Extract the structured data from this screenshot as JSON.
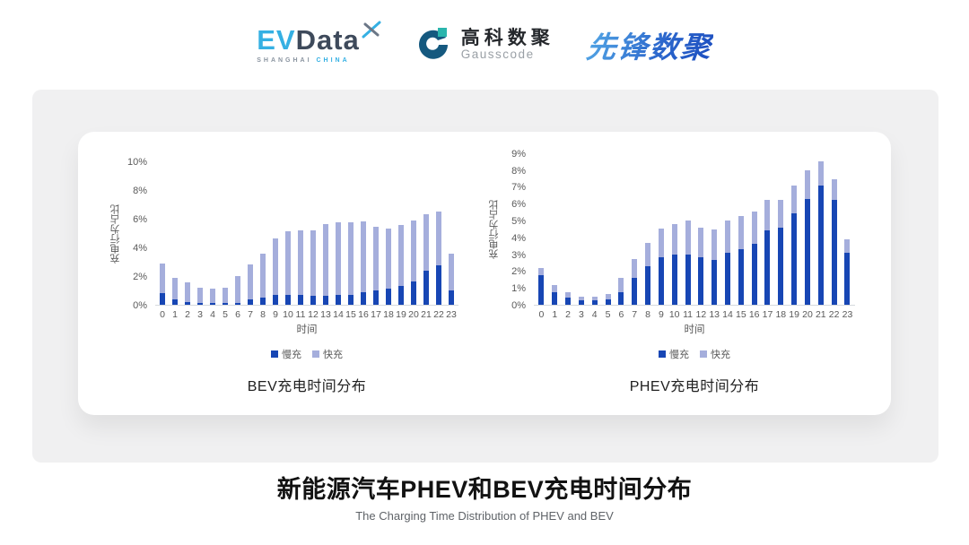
{
  "header": {
    "evdata": {
      "ev": "EV",
      "data": "Data",
      "sub_left": "SHANGHAI ",
      "sub_right": "CHINA"
    },
    "gausscode": {
      "cn": "高科数聚",
      "en": "Gausscode"
    },
    "xianfeng": {
      "text": "先锋数聚"
    }
  },
  "footer": {
    "title": "新能源汽车PHEV和BEV充电时间分布",
    "subtitle": "The Charging Time Distribution of PHEV and BEV"
  },
  "colors": {
    "slow_charge": "#1746B4",
    "fast_charge": "#A5AEDC",
    "axis_text": "#595959",
    "baseline": "#d6d9de"
  },
  "chart_data": [
    {
      "type": "bar",
      "stacked": true,
      "title": "BEV充电时间分布",
      "xlabel": "时间",
      "ylabel": "充电行为占比",
      "ylim": [
        0,
        10
      ],
      "ytick_step": 2,
      "ytick_suffix": "%",
      "grid": false,
      "legend_position": "bottom",
      "categories": [
        "0",
        "1",
        "2",
        "3",
        "4",
        "5",
        "6",
        "7",
        "8",
        "9",
        "10",
        "11",
        "12",
        "13",
        "14",
        "15",
        "16",
        "17",
        "18",
        "19",
        "20",
        "21",
        "22",
        "23"
      ],
      "series": [
        {
          "name": "慢充",
          "color": "#1746B4",
          "values": [
            0.8,
            0.35,
            0.2,
            0.1,
            0.1,
            0.1,
            0.15,
            0.35,
            0.5,
            0.7,
            0.7,
            0.7,
            0.6,
            0.65,
            0.7,
            0.7,
            0.85,
            1.0,
            1.1,
            1.3,
            1.6,
            2.4,
            2.75,
            1.0
          ]
        },
        {
          "name": "快充",
          "color": "#A5AEDC",
          "values": [
            2.1,
            1.55,
            1.35,
            1.1,
            1.0,
            1.1,
            1.85,
            2.45,
            3.05,
            3.9,
            4.45,
            4.5,
            4.6,
            4.95,
            5.05,
            5.05,
            4.95,
            4.45,
            4.2,
            4.25,
            4.25,
            3.9,
            3.75,
            2.55
          ]
        }
      ]
    },
    {
      "type": "bar",
      "stacked": true,
      "title": "PHEV充电时间分布",
      "xlabel": "时间",
      "ylabel": "充电行为占比",
      "ylim": [
        0,
        9
      ],
      "ytick_step": 1,
      "ytick_suffix": "%",
      "grid": false,
      "legend_position": "bottom",
      "categories": [
        "0",
        "1",
        "2",
        "3",
        "4",
        "5",
        "6",
        "7",
        "8",
        "9",
        "10",
        "11",
        "12",
        "13",
        "14",
        "15",
        "16",
        "17",
        "18",
        "19",
        "20",
        "21",
        "22",
        "23"
      ],
      "series": [
        {
          "name": "慢充",
          "color": "#1746B4",
          "values": [
            1.75,
            0.75,
            0.45,
            0.25,
            0.25,
            0.3,
            0.75,
            1.6,
            2.3,
            2.8,
            3.0,
            3.0,
            2.8,
            2.65,
            3.1,
            3.3,
            3.6,
            4.4,
            4.55,
            5.45,
            6.3,
            7.05,
            6.2,
            3.1
          ]
        },
        {
          "name": "快充",
          "color": "#A5AEDC",
          "values": [
            0.45,
            0.4,
            0.3,
            0.25,
            0.25,
            0.35,
            0.85,
            1.1,
            1.35,
            1.7,
            1.8,
            2.0,
            1.8,
            1.8,
            1.9,
            1.95,
            1.95,
            1.8,
            1.65,
            1.65,
            1.7,
            1.45,
            1.25,
            0.8
          ]
        }
      ]
    }
  ]
}
